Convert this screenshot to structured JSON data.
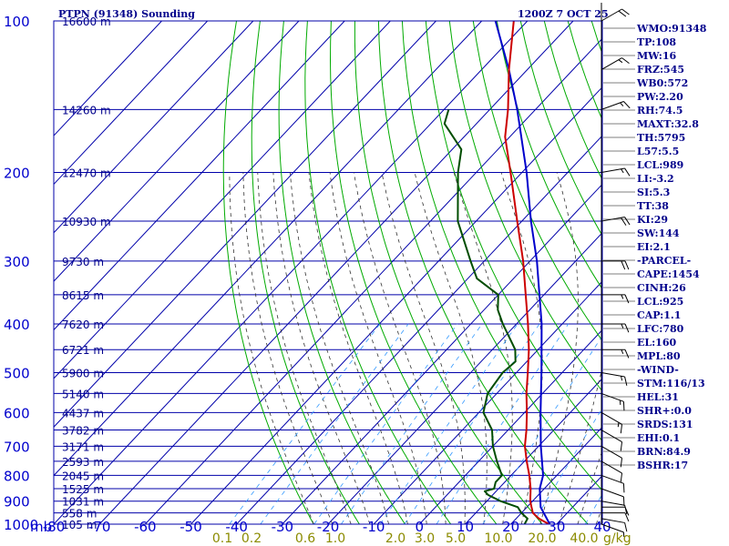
{
  "header": {
    "left_title": "PTPN (91348) Sounding",
    "right_title": "1200Z  7 OCT 25"
  },
  "colors": {
    "isobar": "#0000aa",
    "isotherm": "#0000aa",
    "dry_adiabat": "#00aa00",
    "moist_adiabat": "#333333",
    "mixing_ratio": "#3399ff",
    "temperature": "#cc0000",
    "dewpoint": "#004d00",
    "parcel": "#0000cc",
    "index_text": "#00008b"
  },
  "pressure_labels": [
    "100",
    "200",
    "300",
    "400",
    "500",
    "600",
    "700",
    "800",
    "900",
    "1000"
  ],
  "temperature_axis_unit": "mb",
  "temperature_labels": [
    "-80",
    "-70",
    "-60",
    "-50",
    "-40",
    "-30",
    "-20",
    "-10",
    "0",
    "10",
    "20",
    "30",
    "40"
  ],
  "height_labels": [
    "16600 m",
    "14260 m",
    "12470 m",
    "10930 m",
    "9730 m",
    "8615 m",
    "7620 m",
    "6721 m",
    "5900 m",
    "5140 m",
    "4437 m",
    "3782 m",
    "3171 m",
    "2593 m",
    "2045 m",
    "1525 m",
    "1031 m",
    "558 m",
    "105 m"
  ],
  "mixing_ratio_labels": [
    "0.1",
    "0.2",
    "0.6",
    "1.0",
    "2.0",
    "3.0",
    "5.0",
    "10.0",
    "20.0",
    "40.0"
  ],
  "mixing_ratio_unit": "g/kg",
  "indices": [
    "WMO:91348",
    "TP:108",
    "MW:16",
    "FRZ:545",
    "WB0:572",
    "PW:2.20",
    "RH:74.5",
    "MAXT:32.8",
    "TH:5795",
    "L57:5.5",
    "LCL:989",
    "LI:-3.2",
    "SI:5.3",
    "TT:38",
    "KI:29",
    "SW:144",
    "EI:2.1",
    "-PARCEL-",
    "CAPE:1454",
    "CINH:26",
    "LCL:925",
    "CAP:1.1",
    "LFC:780",
    "EL:160",
    "MPL:80",
    "-WIND-",
    "STM:116/13",
    "HEL:31",
    "SHR+:0.0",
    "SRDS:131",
    "EHI:0.1",
    "BRN:84.9",
    "BSHR:17"
  ],
  "chart_data": {
    "type": "line",
    "diagram": "skew-T log-P",
    "title": "PTPN (91348) Sounding",
    "valid_time": "1200Z  7 OCT 25",
    "xlabel": "",
    "ylabel": "mb",
    "xlim": [
      -80,
      40
    ],
    "ylim": [
      1000,
      100
    ],
    "y_scale": "log",
    "grid": true,
    "series": [
      {
        "role": "temperature",
        "x_unit": "C",
        "points": [
          [
            1000,
            28.3
          ],
          [
            975,
            25
          ],
          [
            950,
            22.5
          ],
          [
            925,
            21
          ],
          [
            900,
            19.5
          ],
          [
            850,
            17
          ],
          [
            800,
            14
          ],
          [
            750,
            10.5
          ],
          [
            700,
            7
          ],
          [
            650,
            4
          ],
          [
            600,
            0.5
          ],
          [
            550,
            -3.5
          ],
          [
            500,
            -7.5
          ],
          [
            450,
            -12
          ],
          [
            400,
            -17.5
          ],
          [
            350,
            -24
          ],
          [
            300,
            -31.5
          ],
          [
            250,
            -41
          ],
          [
            200,
            -52.5
          ],
          [
            170,
            -61
          ],
          [
            150,
            -66
          ],
          [
            125,
            -74
          ],
          [
            100,
            -83
          ]
        ]
      },
      {
        "role": "dewpoint",
        "x_unit": "C",
        "points": [
          [
            1000,
            23
          ],
          [
            975,
            22.5
          ],
          [
            950,
            20
          ],
          [
            925,
            18
          ],
          [
            900,
            13
          ],
          [
            875,
            9
          ],
          [
            860,
            7.5
          ],
          [
            850,
            9
          ],
          [
            825,
            8
          ],
          [
            800,
            8
          ],
          [
            750,
            4
          ],
          [
            700,
            0
          ],
          [
            650,
            -3.5
          ],
          [
            600,
            -9
          ],
          [
            550,
            -12
          ],
          [
            500,
            -13
          ],
          [
            475,
            -12.5
          ],
          [
            450,
            -15
          ],
          [
            400,
            -23
          ],
          [
            375,
            -27
          ],
          [
            350,
            -30
          ],
          [
            325,
            -38
          ],
          [
            300,
            -43
          ],
          [
            250,
            -54
          ],
          [
            200,
            -64
          ],
          [
            180,
            -68
          ],
          [
            160,
            -77
          ],
          [
            150,
            -79
          ]
        ]
      },
      {
        "role": "parcel",
        "x_unit": "C",
        "points": [
          [
            1000,
            28.5
          ],
          [
            925,
            23
          ],
          [
            850,
            19
          ],
          [
            800,
            17
          ],
          [
            700,
            10.5
          ],
          [
            600,
            3.5
          ],
          [
            500,
            -4.5
          ],
          [
            400,
            -14.5
          ],
          [
            300,
            -28.5
          ],
          [
            250,
            -38
          ],
          [
            200,
            -49
          ],
          [
            150,
            -64
          ],
          [
            125,
            -74
          ],
          [
            100,
            -87
          ]
        ]
      }
    ],
    "wind_barbs": [
      {
        "p": 1000,
        "dir": 110,
        "spd": 5
      },
      {
        "p": 975,
        "dir": 100,
        "spd": 10
      },
      {
        "p": 950,
        "dir": 90,
        "spd": 10
      },
      {
        "p": 925,
        "dir": 90,
        "spd": 10
      },
      {
        "p": 900,
        "dir": 100,
        "spd": 10
      },
      {
        "p": 850,
        "dir": 110,
        "spd": 10
      },
      {
        "p": 800,
        "dir": 110,
        "spd": 10
      },
      {
        "p": 750,
        "dir": 120,
        "spd": 10
      },
      {
        "p": 700,
        "dir": 120,
        "spd": 10
      },
      {
        "p": 650,
        "dir": 120,
        "spd": 10
      },
      {
        "p": 600,
        "dir": 120,
        "spd": 15
      },
      {
        "p": 550,
        "dir": 110,
        "spd": 15
      },
      {
        "p": 500,
        "dir": 100,
        "spd": 15
      },
      {
        "p": 450,
        "dir": 90,
        "spd": 15
      },
      {
        "p": 400,
        "dir": 90,
        "spd": 15
      },
      {
        "p": 350,
        "dir": 90,
        "spd": 15
      },
      {
        "p": 300,
        "dir": 90,
        "spd": 20
      },
      {
        "p": 250,
        "dir": 80,
        "spd": 20
      },
      {
        "p": 200,
        "dir": 80,
        "spd": 15
      },
      {
        "p": 150,
        "dir": 70,
        "spd": 15
      },
      {
        "p": 125,
        "dir": 60,
        "spd": 15
      },
      {
        "p": 100,
        "dir": 60,
        "spd": 20
      }
    ]
  }
}
